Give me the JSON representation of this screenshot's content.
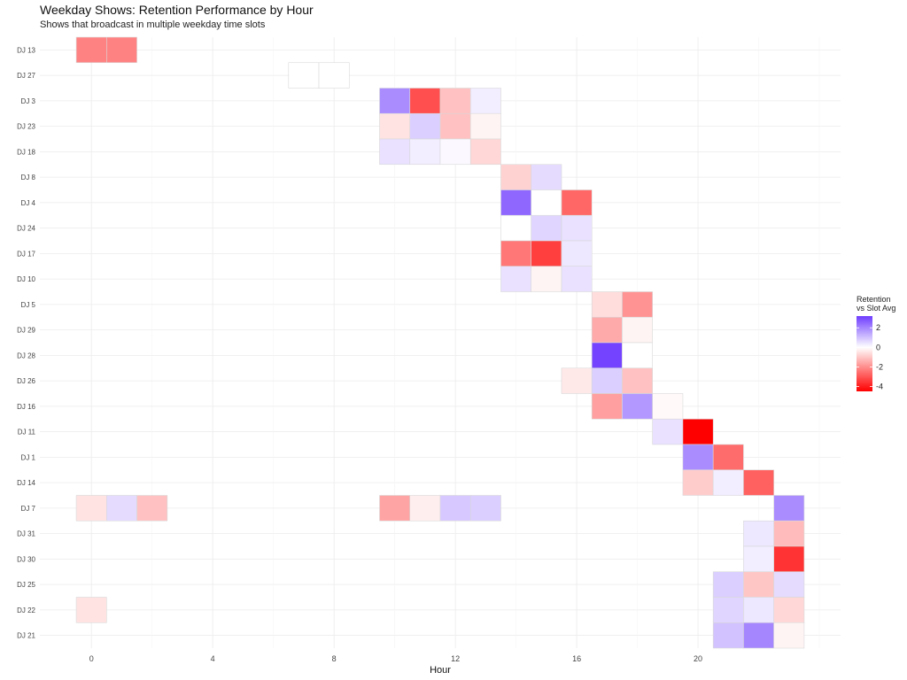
{
  "chart_data": {
    "type": "heatmap",
    "title": "Weekday Shows: Retention Performance by Hour",
    "subtitle": "Shows that broadcast in multiple weekday time slots",
    "xlabel": "Hour",
    "ylabel": "",
    "x_ticks": [
      0,
      4,
      8,
      12,
      16,
      20
    ],
    "xlim": [
      -1.7,
      24.7
    ],
    "grid": true,
    "legend": {
      "title_line1": "Retention",
      "title_line2": "vs Slot Avg",
      "placement": "right",
      "ticks": [
        2,
        0,
        -2,
        -4
      ],
      "tick_labels": [
        "2",
        "0",
        "-2",
        "-4"
      ],
      "range": [
        -4.5,
        3.2
      ]
    },
    "colors": {
      "low": "#ff0000",
      "mid": "#ffffff",
      "high": "#6f3dff"
    },
    "y_categories": [
      "DJ 13",
      "DJ 27",
      "DJ 3",
      "DJ 23",
      "DJ 18",
      "DJ 8",
      "DJ 4",
      "DJ 24",
      "DJ 17",
      "DJ 10",
      "DJ 5",
      "DJ 29",
      "DJ 28",
      "DJ 26",
      "DJ 16",
      "DJ 11",
      "DJ 1",
      "DJ 14",
      "DJ 7",
      "DJ 31",
      "DJ 30",
      "DJ 25",
      "DJ 22",
      "DJ 21"
    ],
    "cells": [
      {
        "dj": "DJ 13",
        "hour": 0,
        "value": -2.2
      },
      {
        "dj": "DJ 13",
        "hour": 1,
        "value": -2.2
      },
      {
        "dj": "DJ 27",
        "hour": 7,
        "value": 0
      },
      {
        "dj": "DJ 27",
        "hour": 8,
        "value": 0
      },
      {
        "dj": "DJ 3",
        "hour": 10,
        "value": 1.9
      },
      {
        "dj": "DJ 3",
        "hour": 11,
        "value": -3.1
      },
      {
        "dj": "DJ 3",
        "hour": 12,
        "value": -1.1
      },
      {
        "dj": "DJ 3",
        "hour": 13,
        "value": 0.3
      },
      {
        "dj": "DJ 23",
        "hour": 10,
        "value": -0.5
      },
      {
        "dj": "DJ 23",
        "hour": 11,
        "value": 0.8
      },
      {
        "dj": "DJ 23",
        "hour": 12,
        "value": -1.1
      },
      {
        "dj": "DJ 23",
        "hour": 13,
        "value": -0.2
      },
      {
        "dj": "DJ 18",
        "hour": 10,
        "value": 0.5
      },
      {
        "dj": "DJ 18",
        "hour": 11,
        "value": 0.3
      },
      {
        "dj": "DJ 18",
        "hour": 12,
        "value": 0.1
      },
      {
        "dj": "DJ 18",
        "hour": 13,
        "value": -0.7
      },
      {
        "dj": "DJ 8",
        "hour": 14,
        "value": -0.8
      },
      {
        "dj": "DJ 8",
        "hour": 15,
        "value": 0.6
      },
      {
        "dj": "DJ 4",
        "hour": 14,
        "value": 2.5
      },
      {
        "dj": "DJ 4",
        "hour": 15,
        "value": 0
      },
      {
        "dj": "DJ 4",
        "hour": 16,
        "value": -2.7
      },
      {
        "dj": "DJ 24",
        "hour": 14,
        "value": 0
      },
      {
        "dj": "DJ 24",
        "hour": 15,
        "value": 0.7
      },
      {
        "dj": "DJ 24",
        "hour": 16,
        "value": 0.5
      },
      {
        "dj": "DJ 17",
        "hour": 14,
        "value": -2.4
      },
      {
        "dj": "DJ 17",
        "hour": 15,
        "value": -3.4
      },
      {
        "dj": "DJ 17",
        "hour": 16,
        "value": 0.4
      },
      {
        "dj": "DJ 10",
        "hour": 14,
        "value": 0.5
      },
      {
        "dj": "DJ 10",
        "hour": 15,
        "value": -0.2
      },
      {
        "dj": "DJ 10",
        "hour": 16,
        "value": 0.5
      },
      {
        "dj": "DJ 5",
        "hour": 17,
        "value": -0.6
      },
      {
        "dj": "DJ 5",
        "hour": 18,
        "value": -1.9
      },
      {
        "dj": "DJ 29",
        "hour": 17,
        "value": -1.5
      },
      {
        "dj": "DJ 29",
        "hour": 18,
        "value": -0.2
      },
      {
        "dj": "DJ 28",
        "hour": 17,
        "value": 3.1
      },
      {
        "dj": "DJ 28",
        "hour": 18,
        "value": 0
      },
      {
        "dj": "DJ 26",
        "hour": 16,
        "value": -0.4
      },
      {
        "dj": "DJ 26",
        "hour": 17,
        "value": 0.8
      },
      {
        "dj": "DJ 26",
        "hour": 18,
        "value": -1.1
      },
      {
        "dj": "DJ 16",
        "hour": 17,
        "value": -1.7
      },
      {
        "dj": "DJ 16",
        "hour": 18,
        "value": 1.7
      },
      {
        "dj": "DJ 16",
        "hour": 19,
        "value": -0.1
      },
      {
        "dj": "DJ 11",
        "hour": 19,
        "value": 0.5
      },
      {
        "dj": "DJ 11",
        "hour": 20,
        "value": -4.5
      },
      {
        "dj": "DJ 1",
        "hour": 20,
        "value": 1.9
      },
      {
        "dj": "DJ 1",
        "hour": 21,
        "value": -2.6
      },
      {
        "dj": "DJ 14",
        "hour": 20,
        "value": -0.9
      },
      {
        "dj": "DJ 14",
        "hour": 21,
        "value": 0.3
      },
      {
        "dj": "DJ 14",
        "hour": 22,
        "value": -2.8
      },
      {
        "dj": "DJ 7",
        "hour": 0,
        "value": -0.5
      },
      {
        "dj": "DJ 7",
        "hour": 1,
        "value": 0.6
      },
      {
        "dj": "DJ 7",
        "hour": 2,
        "value": -1.1
      },
      {
        "dj": "DJ 7",
        "hour": 10,
        "value": -1.6
      },
      {
        "dj": "DJ 7",
        "hour": 11,
        "value": -0.3
      },
      {
        "dj": "DJ 7",
        "hour": 12,
        "value": 0.9
      },
      {
        "dj": "DJ 7",
        "hour": 13,
        "value": 0.8
      },
      {
        "dj": "DJ 7",
        "hour": 23,
        "value": 1.9
      },
      {
        "dj": "DJ 31",
        "hour": 22,
        "value": 0.4
      },
      {
        "dj": "DJ 31",
        "hour": 23,
        "value": -1.2
      },
      {
        "dj": "DJ 30",
        "hour": 22,
        "value": 0.3
      },
      {
        "dj": "DJ 30",
        "hour": 23,
        "value": -3.6
      },
      {
        "dj": "DJ 25",
        "hour": 21,
        "value": 0.8
      },
      {
        "dj": "DJ 25",
        "hour": 22,
        "value": -1.0
      },
      {
        "dj": "DJ 25",
        "hour": 23,
        "value": 0.6
      },
      {
        "dj": "DJ 22",
        "hour": 0,
        "value": -0.5
      },
      {
        "dj": "DJ 22",
        "hour": 21,
        "value": 0.7
      },
      {
        "dj": "DJ 22",
        "hour": 22,
        "value": 0.4
      },
      {
        "dj": "DJ 22",
        "hour": 23,
        "value": -0.7
      },
      {
        "dj": "DJ 21",
        "hour": 21,
        "value": 1.0
      },
      {
        "dj": "DJ 21",
        "hour": 22,
        "value": 2.0
      },
      {
        "dj": "DJ 21",
        "hour": 23,
        "value": -0.2
      }
    ]
  }
}
